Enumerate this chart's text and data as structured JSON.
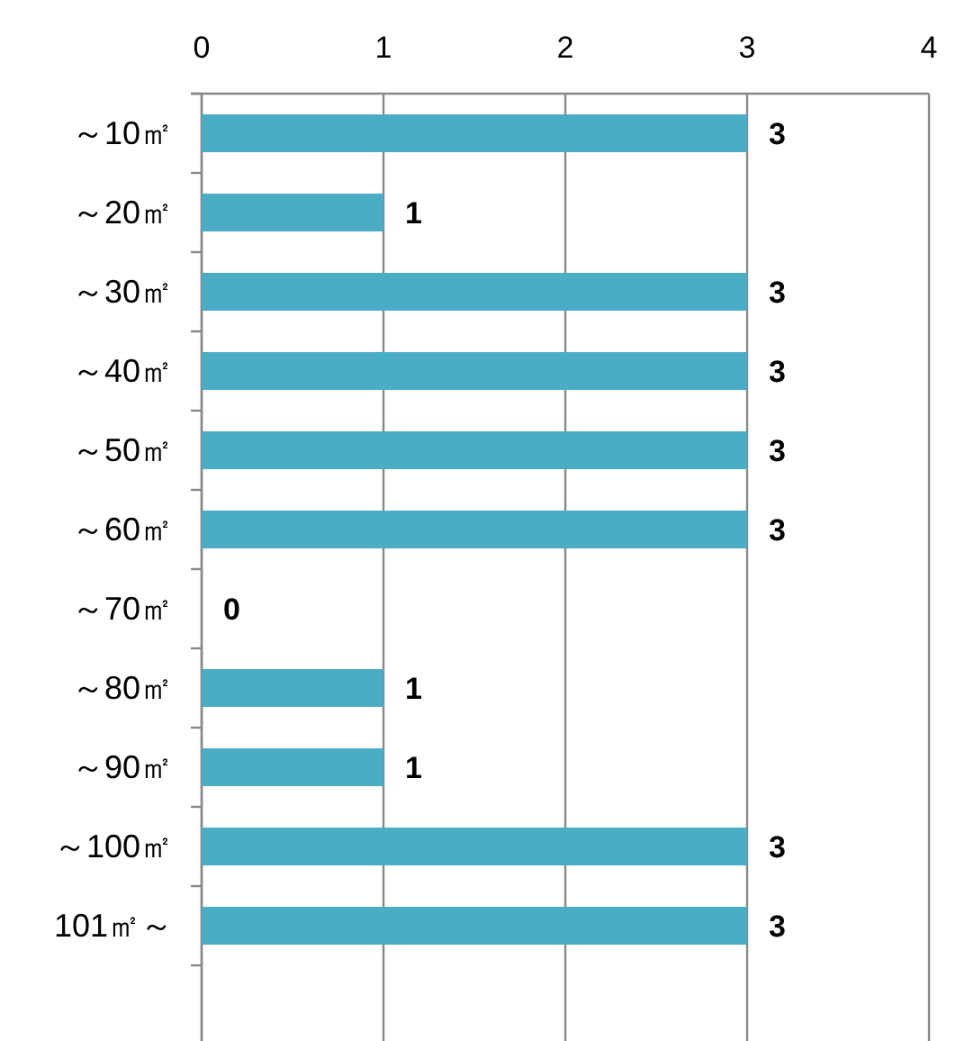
{
  "chart_data": {
    "type": "bar",
    "orientation": "horizontal",
    "categories": [
      "～10㎡",
      "～20㎡",
      "～30㎡",
      "～40㎡",
      "～50㎡",
      "～60㎡",
      "～70㎡",
      "～80㎡",
      "～90㎡",
      "～100㎡",
      "101㎡～"
    ],
    "values": [
      3,
      1,
      3,
      3,
      3,
      3,
      0,
      1,
      1,
      3,
      3
    ],
    "color": "#4bacc6",
    "xlim": [
      0,
      4
    ],
    "xticks": [
      0,
      1,
      2,
      3,
      4
    ],
    "grid": "x",
    "data_labels": true
  }
}
